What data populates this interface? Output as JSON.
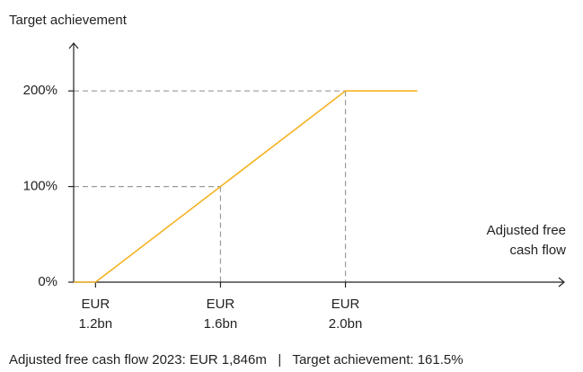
{
  "chart_data": {
    "type": "line",
    "y_label": "Target achievement",
    "x_label": "Adjusted free cash flow",
    "footnote": "Adjusted free cash flow 2023: EUR 1,846m   |   Target achievement: 161.5%",
    "x": [
      1.13,
      1.2,
      1.6,
      2.0,
      2.23
    ],
    "series": [
      {
        "name": "Target achievement",
        "color": "#f5b324",
        "values": [
          0,
          0,
          100,
          200,
          200
        ]
      }
    ],
    "xlim": [
      1.13,
      2.7
    ],
    "ylim": [
      0,
      250
    ],
    "xticks": [
      {
        "value": 1.2,
        "label": "EUR 1.2bn"
      },
      {
        "value": 1.6,
        "label": "EUR 1.6bn"
      },
      {
        "value": 2.0,
        "label": "EUR 2.0bn"
      }
    ],
    "yticks": [
      {
        "value": 0,
        "label": "0%"
      },
      {
        "value": 100,
        "label": "100%"
      },
      {
        "value": 200,
        "label": "200%"
      }
    ]
  }
}
